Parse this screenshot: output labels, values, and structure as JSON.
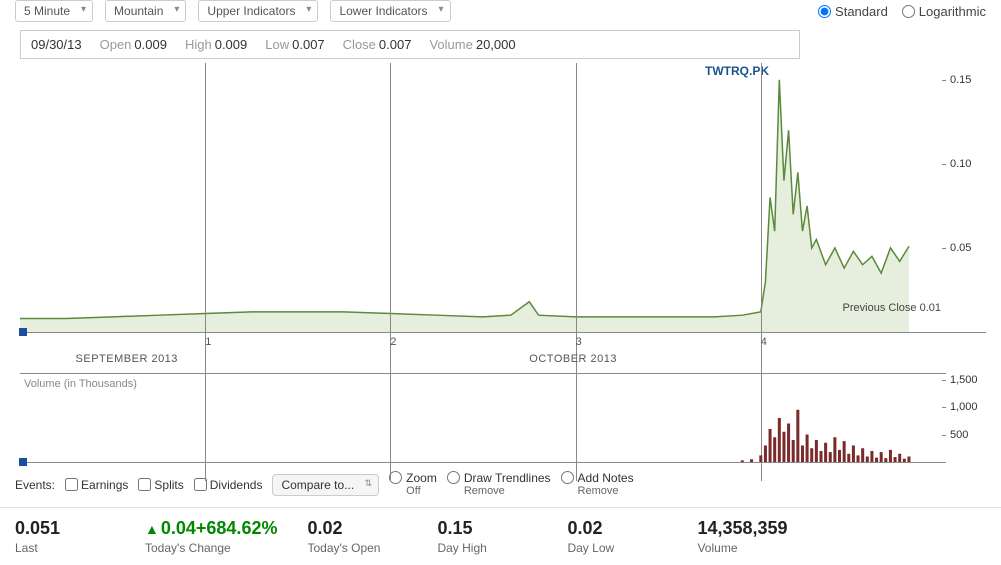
{
  "toolbar": {
    "interval": "5 Minute",
    "chart_type": "Mountain",
    "upper": "Upper Indicators",
    "lower": "Lower Indicators",
    "scale_standard": "Standard",
    "scale_log": "Logarithmic",
    "scale_selected": "standard"
  },
  "ohlc": {
    "date": "09/30/13",
    "open_label": "Open",
    "open": "0.009",
    "high_label": "High",
    "high": "0.009",
    "low_label": "Low",
    "low": "0.007",
    "close_label": "Close",
    "close": "0.007",
    "volume_label": "Volume",
    "volume": "20,000"
  },
  "ticker": "TWTRQ.PK",
  "price_chart": {
    "type": "area",
    "line_color": "#5b8a3a",
    "fill_color": "#dce8cf",
    "fill_opacity": 0.7,
    "background_color": "#ffffff",
    "axis_color": "#888888",
    "ylim": [
      0,
      0.16
    ],
    "yticks": [
      {
        "v": 0.05,
        "label": "0.05"
      },
      {
        "v": 0.1,
        "label": "0.10"
      },
      {
        "v": 0.15,
        "label": "0.15"
      }
    ],
    "prev_close": {
      "label": "Previous Close",
      "value": "0.01",
      "y": 0.01
    },
    "x_extent": 100,
    "x_ticks": [
      {
        "x": 20,
        "label": "1"
      },
      {
        "x": 40,
        "label": "2"
      },
      {
        "x": 60,
        "label": "3"
      },
      {
        "x": 80,
        "label": "4"
      }
    ],
    "x_major": [
      {
        "x": 6,
        "label": "SEPTEMBER 2013"
      },
      {
        "x": 55,
        "label": "OCTOBER 2013"
      }
    ],
    "series": [
      {
        "x": 0,
        "y": 0.008
      },
      {
        "x": 5,
        "y": 0.008
      },
      {
        "x": 10,
        "y": 0.009
      },
      {
        "x": 15,
        "y": 0.01
      },
      {
        "x": 20,
        "y": 0.011
      },
      {
        "x": 25,
        "y": 0.012
      },
      {
        "x": 30,
        "y": 0.012
      },
      {
        "x": 35,
        "y": 0.012
      },
      {
        "x": 40,
        "y": 0.011
      },
      {
        "x": 45,
        "y": 0.01
      },
      {
        "x": 50,
        "y": 0.009
      },
      {
        "x": 53,
        "y": 0.01
      },
      {
        "x": 55,
        "y": 0.018
      },
      {
        "x": 56,
        "y": 0.01
      },
      {
        "x": 60,
        "y": 0.009
      },
      {
        "x": 65,
        "y": 0.009
      },
      {
        "x": 70,
        "y": 0.009
      },
      {
        "x": 75,
        "y": 0.009
      },
      {
        "x": 78,
        "y": 0.01
      },
      {
        "x": 80,
        "y": 0.012
      },
      {
        "x": 80.5,
        "y": 0.03
      },
      {
        "x": 81,
        "y": 0.08
      },
      {
        "x": 81.5,
        "y": 0.06
      },
      {
        "x": 82,
        "y": 0.15
      },
      {
        "x": 82.5,
        "y": 0.09
      },
      {
        "x": 83,
        "y": 0.12
      },
      {
        "x": 83.5,
        "y": 0.07
      },
      {
        "x": 84,
        "y": 0.095
      },
      {
        "x": 84.5,
        "y": 0.06
      },
      {
        "x": 85,
        "y": 0.075
      },
      {
        "x": 85.5,
        "y": 0.05
      },
      {
        "x": 86,
        "y": 0.055
      },
      {
        "x": 87,
        "y": 0.04
      },
      {
        "x": 88,
        "y": 0.05
      },
      {
        "x": 89,
        "y": 0.038
      },
      {
        "x": 90,
        "y": 0.048
      },
      {
        "x": 91,
        "y": 0.04
      },
      {
        "x": 92,
        "y": 0.045
      },
      {
        "x": 93,
        "y": 0.035
      },
      {
        "x": 94,
        "y": 0.05
      },
      {
        "x": 95,
        "y": 0.042
      },
      {
        "x": 96,
        "y": 0.051
      }
    ]
  },
  "volume_chart": {
    "type": "bar",
    "bar_color": "#7a2a2a",
    "label": "Volume (in Thousands)",
    "ylim": [
      0,
      1600
    ],
    "yticks": [
      {
        "v": 500,
        "label": "500"
      },
      {
        "v": 1000,
        "label": "1,000"
      },
      {
        "v": 1500,
        "label": "1,500"
      }
    ],
    "bars": [
      {
        "x": 78,
        "v": 30
      },
      {
        "x": 79,
        "v": 50
      },
      {
        "x": 80,
        "v": 120
      },
      {
        "x": 80.5,
        "v": 300
      },
      {
        "x": 81,
        "v": 600
      },
      {
        "x": 81.5,
        "v": 450
      },
      {
        "x": 82,
        "v": 800
      },
      {
        "x": 82.5,
        "v": 550
      },
      {
        "x": 83,
        "v": 700
      },
      {
        "x": 83.5,
        "v": 400
      },
      {
        "x": 84,
        "v": 950
      },
      {
        "x": 84.5,
        "v": 300
      },
      {
        "x": 85,
        "v": 500
      },
      {
        "x": 85.5,
        "v": 250
      },
      {
        "x": 86,
        "v": 400
      },
      {
        "x": 86.5,
        "v": 200
      },
      {
        "x": 87,
        "v": 350
      },
      {
        "x": 87.5,
        "v": 180
      },
      {
        "x": 88,
        "v": 450
      },
      {
        "x": 88.5,
        "v": 220
      },
      {
        "x": 89,
        "v": 380
      },
      {
        "x": 89.5,
        "v": 150
      },
      {
        "x": 90,
        "v": 300
      },
      {
        "x": 90.5,
        "v": 120
      },
      {
        "x": 91,
        "v": 250
      },
      {
        "x": 91.5,
        "v": 100
      },
      {
        "x": 92,
        "v": 200
      },
      {
        "x": 92.5,
        "v": 80
      },
      {
        "x": 93,
        "v": 180
      },
      {
        "x": 93.5,
        "v": 70
      },
      {
        "x": 94,
        "v": 220
      },
      {
        "x": 94.5,
        "v": 90
      },
      {
        "x": 95,
        "v": 150
      },
      {
        "x": 95.5,
        "v": 60
      },
      {
        "x": 96,
        "v": 100
      }
    ]
  },
  "events_bar": {
    "label": "Events:",
    "earnings": "Earnings",
    "splits": "Splits",
    "dividends": "Dividends",
    "compare": "Compare to...",
    "zoom": "Zoom",
    "zoom_sub": "Off",
    "trend": "Draw Trendlines",
    "trend_sub": "Remove",
    "notes": "Add Notes",
    "notes_sub": "Remove"
  },
  "summary": {
    "last": {
      "value": "0.051",
      "label": "Last"
    },
    "change": {
      "arrow": "▲",
      "value": "0.04+684.62%",
      "label": "Today's Change",
      "color": "#008800"
    },
    "open": {
      "value": "0.02",
      "label": "Today's Open"
    },
    "high": {
      "value": "0.15",
      "label": "Day High"
    },
    "low": {
      "value": "0.02",
      "label": "Day Low"
    },
    "volume": {
      "value": "14,358,359",
      "label": "Volume"
    }
  }
}
